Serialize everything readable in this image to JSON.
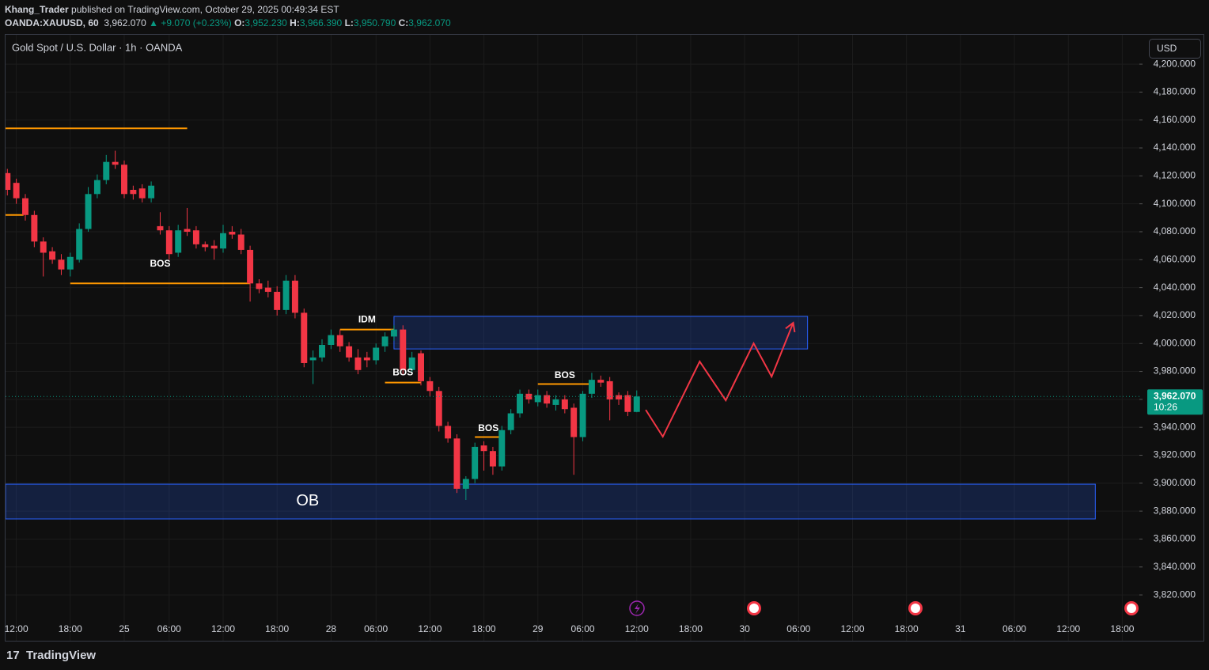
{
  "header": {
    "publisher": "Khang_Trader",
    "published": "published on TradingView.com, October 29, 2025 00:49:34 EST",
    "symbol": "OANDA:XAUUSD, 60",
    "last": "3,962.070",
    "change": "+9.070 (+0.23%)",
    "o_label": "O:",
    "o": "3,952.230",
    "h_label": "H:",
    "h": "3,966.390",
    "l_label": "L:",
    "l": "3,950.790",
    "c_label": "C:",
    "c": "3,962.070"
  },
  "chart_data": {
    "type": "candlestick",
    "title": "Gold Spot / U.S. Dollar · 1h · OANDA",
    "currency": "USD",
    "up_color": "#089981",
    "down_color": "#f23645",
    "x": [
      0,
      1,
      2,
      3,
      4,
      5,
      6,
      7,
      8,
      9,
      10,
      11,
      12,
      13,
      14,
      15,
      16,
      17,
      18,
      19,
      20,
      21,
      22,
      23,
      24,
      25,
      26,
      27,
      28,
      29,
      30,
      31,
      32,
      33,
      34,
      35,
      36,
      37,
      38,
      39,
      40,
      41,
      42,
      43,
      44,
      45,
      46,
      47,
      48,
      49,
      50,
      51,
      52,
      53,
      54,
      55,
      56,
      57,
      58,
      59,
      60,
      61,
      62,
      63,
      64,
      65,
      66,
      67,
      68,
      69,
      70
    ],
    "open": [
      4122,
      4115,
      4104,
      4092,
      4073,
      4066,
      4060,
      4053,
      4060,
      4082,
      4107,
      4117,
      4130,
      4128,
      4110,
      4111,
      4104,
      4084,
      4081,
      4065,
      4082,
      4081,
      4071,
      4070,
      4068,
      4080,
      4078,
      4067,
      4043,
      4040,
      4037,
      4024,
      4045,
      4022,
      3988,
      3990,
      3999,
      4006,
      3998,
      3990,
      3990,
      3988,
      3998,
      4005,
      4010,
      3981,
      3993,
      3973,
      3966,
      3941,
      3932,
      3896,
      3903,
      3927,
      3923,
      3912,
      3938,
      3950,
      3964,
      3958,
      3963,
      3956,
      3960,
      3954,
      3933,
      3964,
      3974,
      3973,
      3963,
      3963,
      3951
    ],
    "high": [
      4125,
      4118,
      4107,
      4095,
      4076,
      4069,
      4064,
      4065,
      4086,
      4112,
      4121,
      4135,
      4138,
      4131,
      4113,
      4114,
      4116,
      4094,
      4084,
      4085,
      4097,
      4084,
      4073,
      4074,
      4085,
      4084,
      4082,
      4070,
      4046,
      4045,
      4041,
      4049,
      4049,
      4025,
      3995,
      4003,
      4010,
      4010,
      4001,
      3996,
      3994,
      4000,
      4008,
      4013,
      4013,
      3994,
      3995,
      3976,
      3969,
      3944,
      3935,
      3905,
      3929,
      3930,
      3926,
      3941,
      3953,
      3967,
      3967,
      3967,
      3966,
      3963,
      3963,
      3957,
      3966,
      3979,
      3977,
      3976,
      3965,
      3966,
      3966.39
    ],
    "low": [
      4106,
      4100,
      4088,
      4069,
      4048,
      4057,
      4049,
      4048,
      4058,
      4080,
      4104,
      4114,
      4125,
      4104,
      4103,
      4101,
      4101,
      4078,
      4060,
      4062,
      4077,
      4068,
      4066,
      4060,
      4065,
      4075,
      4064,
      4030,
      4036,
      4033,
      4020,
      4021,
      4018,
      3983,
      3971,
      3987,
      3996,
      3994,
      3987,
      3978,
      3983,
      3985,
      3994,
      4002,
      3978,
      3979,
      3970,
      3962,
      3937,
      3929,
      3893,
      3888,
      3900,
      3909,
      3906,
      3909,
      3935,
      3947,
      3957,
      3955,
      3954,
      3952,
      3950,
      3906,
      3930,
      3961,
      3969,
      3945,
      3956,
      3948,
      3950.79
    ],
    "close": [
      4110,
      4104,
      4092,
      4073,
      4065,
      4060,
      4053,
      4062,
      4082,
      4107,
      4117,
      4130,
      4128,
      4107,
      4107,
      4104,
      4113,
      4081,
      4064,
      4081,
      4080,
      4071,
      4069,
      4068,
      4079,
      4078,
      4067,
      4043,
      4039,
      4037,
      4024,
      4045,
      4022,
      3986,
      3990,
      3999,
      4006,
      3998,
      3990,
      3981,
      3988,
      3997,
      4005,
      4010,
      3981,
      3990,
      3973,
      3966,
      3941,
      3932,
      3896,
      3903,
      3926,
      3923,
      3912,
      3938,
      3950,
      3964,
      3960,
      3963,
      3957,
      3960,
      3953,
      3933,
      3964,
      3974,
      3972,
      3960,
      3960,
      3951,
      3962.07
    ],
    "xlim": [
      -0.2,
      125.9
    ],
    "ylim": [
      3787.2,
      4221
    ],
    "yticks": [
      {
        "value": 3820,
        "label": "3,820.000"
      },
      {
        "value": 3840,
        "label": "3,840.000"
      },
      {
        "value": 3860,
        "label": "3,860.000"
      },
      {
        "value": 3880,
        "label": "3,880.000"
      },
      {
        "value": 3900,
        "label": "3,900.000"
      },
      {
        "value": 3920,
        "label": "3,920.000"
      },
      {
        "value": 3940,
        "label": "3,940.000"
      },
      {
        "value": 3960,
        "label": "3,960.000"
      },
      {
        "value": 3980,
        "label": "3,980.000"
      },
      {
        "value": 4000,
        "label": "4,000.000"
      },
      {
        "value": 4020,
        "label": "4,020.000"
      },
      {
        "value": 4040,
        "label": "4,040.000"
      },
      {
        "value": 4060,
        "label": "4,060.000"
      },
      {
        "value": 4080,
        "label": "4,080.000"
      },
      {
        "value": 4100,
        "label": "4,100.000"
      },
      {
        "value": 4120,
        "label": "4,120.000"
      },
      {
        "value": 4140,
        "label": "4,140.000"
      },
      {
        "value": 4160,
        "label": "4,160.000"
      },
      {
        "value": 4180,
        "label": "4,180.000"
      },
      {
        "value": 4200,
        "label": "4,200.000"
      }
    ],
    "xticks": [
      {
        "value": 1,
        "label": "12:00"
      },
      {
        "value": 7,
        "label": "18:00"
      },
      {
        "value": 13,
        "label": "25"
      },
      {
        "value": 18,
        "label": "06:00"
      },
      {
        "value": 24,
        "label": "12:00"
      },
      {
        "value": 30,
        "label": "18:00"
      },
      {
        "value": 36,
        "label": "28"
      },
      {
        "value": 41,
        "label": "06:00"
      },
      {
        "value": 47,
        "label": "12:00"
      },
      {
        "value": 53,
        "label": "18:00"
      },
      {
        "value": 59,
        "label": "29"
      },
      {
        "value": 64,
        "label": "06:00"
      },
      {
        "value": 70,
        "label": "12:00"
      },
      {
        "value": 76,
        "label": "18:00"
      },
      {
        "value": 82,
        "label": "30"
      },
      {
        "value": 88,
        "label": "06:00"
      },
      {
        "value": 94,
        "label": "12:00"
      },
      {
        "value": 100,
        "label": "18:00"
      },
      {
        "value": 106,
        "label": "31"
      },
      {
        "value": 112,
        "label": "06:00"
      },
      {
        "value": 118,
        "label": "12:00"
      },
      {
        "value": 124,
        "label": "18:00"
      }
    ],
    "grid": true,
    "last_price_label": "3,962.070",
    "countdown": "10:26",
    "level_color": "#ff9800",
    "levels": [
      {
        "price": 4154,
        "start": -0.2,
        "end": 20
      },
      {
        "price": 4092,
        "start": -0.2,
        "end": 1.8
      },
      {
        "price": 4043,
        "start": 7,
        "end": 27,
        "text": "BOS",
        "text_x": 17,
        "text_price": 4057
      },
      {
        "price": 4010,
        "start": 37,
        "end": 43,
        "text": "IDM",
        "text_x": 40,
        "text_price": 4017
      },
      {
        "price": 3972,
        "start": 42,
        "end": 46,
        "text": "BOS",
        "text_x": 44,
        "text_price": 3979
      },
      {
        "price": 3933,
        "start": 52,
        "end": 55,
        "text": "BOS",
        "text_x": 53.5,
        "text_price": 3939
      },
      {
        "price": 3971,
        "start": 59,
        "end": 65,
        "text": "BOS",
        "text_x": 62,
        "text_price": 3977
      }
    ],
    "zone_color": "#2962ff",
    "zones": [
      {
        "top": 4019.4,
        "bottom": 3996.1,
        "start": 43,
        "end": 89
      },
      {
        "top": 3899.3,
        "bottom": 3874.4,
        "start": -0.2,
        "end": 121,
        "text": "OB",
        "text_x": 33.4,
        "text_price": 3887
      }
    ],
    "projection": {
      "color": "#f23645",
      "x": [
        71,
        72.9,
        77,
        79.9,
        83,
        85,
        87.4
      ],
      "y": [
        3952.5,
        3933.3,
        3987.1,
        3959.3,
        4000.1,
        3976.3,
        4014.8
      ]
    }
  },
  "footer": {
    "brand": "TradingView"
  }
}
